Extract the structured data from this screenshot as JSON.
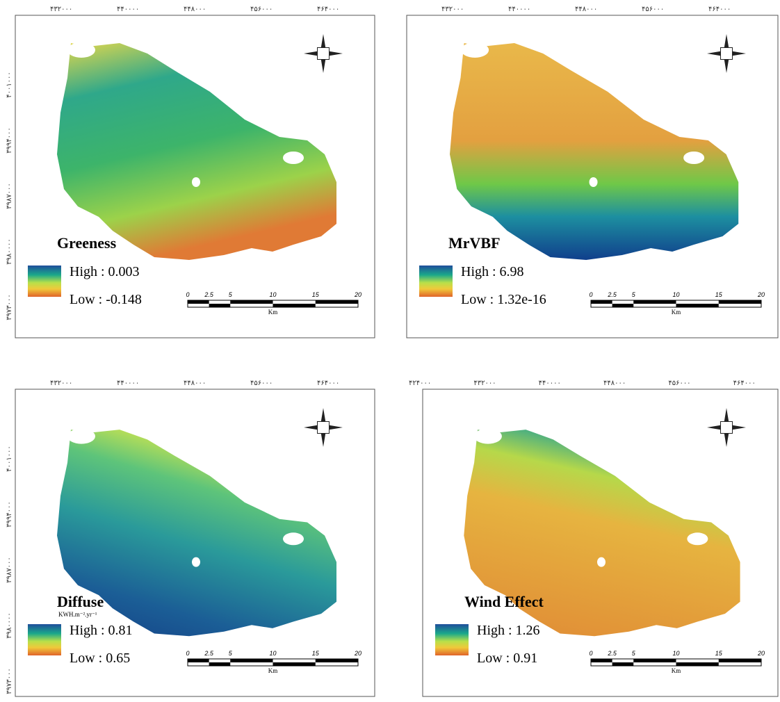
{
  "panels": [
    {
      "title": "Greeness",
      "high": "High : 0.003",
      "low": "Low : -0.148",
      "top_ticks": [
        "۴۳۲۰۰۰",
        "۴۴۰۰۰۰",
        "۴۴۸۰۰۰",
        "۴۵۶۰۰۰",
        "۴۶۴۰۰۰"
      ],
      "left_ticks": [
        "۴۰۰۱۰۰۰",
        "۳۹۹۴۰۰۰",
        "۳۹۸۷۰۰۰",
        "۳۹۸۰۰۰۰",
        "۳۹۷۳۰۰۰"
      ]
    },
    {
      "title": "MrVBF",
      "high": "High : 6.98",
      "low": "Low : 1.32e-16",
      "top_ticks": [
        "۴۳۲۰۰۰",
        "۴۴۰۰۰۰",
        "۴۴۸۰۰۰",
        "۴۵۶۰۰۰",
        "۴۶۴۰۰۰"
      ]
    },
    {
      "title": "Diffuse",
      "unit": "KWH.m⁻².yr⁻¹",
      "high": "High : 0.81",
      "low": "Low : 0.65",
      "top_ticks": [
        "۴۳۲۰۰۰",
        "۴۴۰۰۰۰",
        "۴۴۸۰۰۰",
        "۴۵۶۰۰۰",
        "۴۶۴۰۰۰"
      ],
      "left_ticks": [
        "۴۰۰۱۰۰۰",
        "۳۹۹۴۰۰۰",
        "۳۹۸۷۰۰۰",
        "۳۹۸۰۰۰۰",
        "۳۹۷۳۰۰۰"
      ]
    },
    {
      "title": "Wind Effect",
      "high": "High : 1.26",
      "low": "Low : 0.91",
      "top_ticks": [
        "۴۲۴۰۰۰",
        "۴۳۲۰۰۰",
        "۴۴۰۰۰۰",
        "۴۴۸۰۰۰",
        "۴۵۶۰۰۰",
        "۴۶۴۰۰۰"
      ]
    }
  ],
  "scale_bar": {
    "labels": [
      "0",
      "2.5",
      "5",
      "10",
      "15",
      "20"
    ],
    "unit": "Km"
  }
}
